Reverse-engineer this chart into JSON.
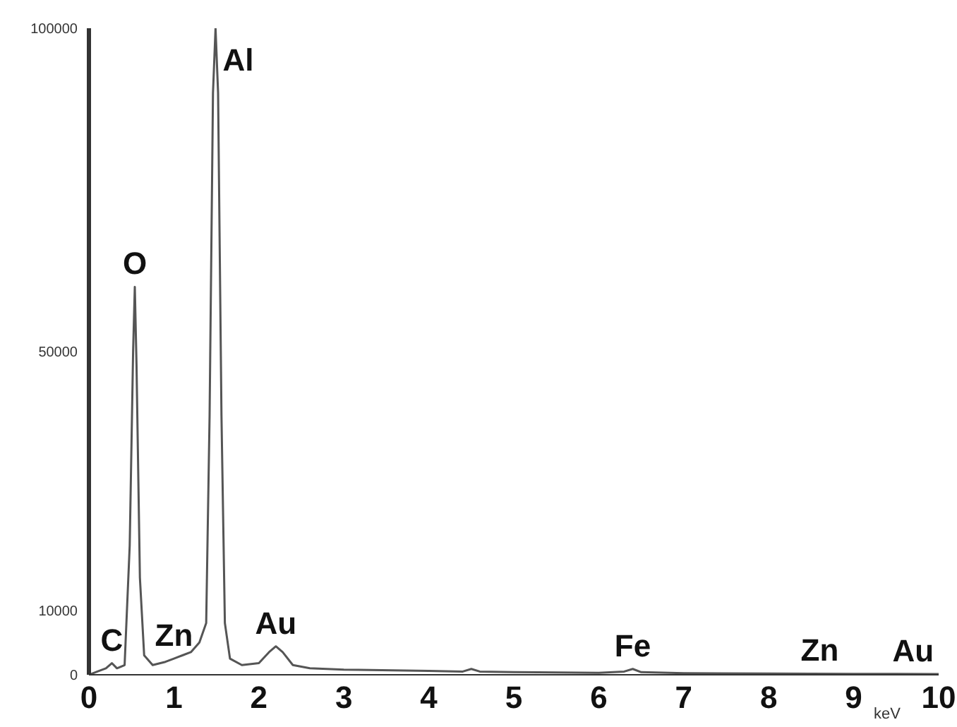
{
  "chart_data": {
    "type": "line",
    "xlabel": "keV",
    "color": "#555555",
    "x": [
      0,
      0.1,
      0.2,
      0.27,
      0.33,
      0.42,
      0.48,
      0.52,
      0.54,
      0.56,
      0.6,
      0.65,
      0.75,
      0.9,
      1.0,
      1.1,
      1.2,
      1.3,
      1.38,
      1.42,
      1.46,
      1.49,
      1.52,
      1.56,
      1.6,
      1.66,
      1.8,
      2.0,
      2.12,
      2.2,
      2.28,
      2.4,
      2.6,
      3.0,
      4.0,
      4.4,
      4.5,
      4.6,
      5.0,
      6.0,
      6.3,
      6.4,
      6.5,
      7.0,
      8.0,
      9.0,
      10.0
    ],
    "values": [
      0,
      500,
      1000,
      1800,
      1000,
      1500,
      20000,
      50000,
      60000,
      48000,
      15000,
      3000,
      1500,
      2000,
      2500,
      3000,
      3500,
      5000,
      8000,
      40000,
      90000,
      100000,
      90000,
      40000,
      8000,
      2500,
      1500,
      1800,
      3500,
      4400,
      3500,
      1500,
      1000,
      800,
      600,
      500,
      900,
      500,
      400,
      300,
      500,
      900,
      400,
      250,
      200,
      150,
      100
    ],
    "xlim": [
      0,
      10
    ],
    "xticks": [
      0,
      1,
      2,
      3,
      4,
      5,
      6,
      7,
      8,
      9,
      10
    ],
    "ylim": [
      0,
      100000
    ],
    "yticks": [
      0,
      10000,
      50000,
      100000
    ],
    "grid": false,
    "marker": "none",
    "line_style": "solid",
    "annotations": [
      {
        "text": "C",
        "x": 0.27,
        "y": 1800
      },
      {
        "text": "O",
        "x": 0.54,
        "y": 60000
      },
      {
        "text": "Zn",
        "x": 1.0,
        "y": 2500
      },
      {
        "text": "Al",
        "x": 1.49,
        "y": 100000
      },
      {
        "text": "Au",
        "x": 2.2,
        "y": 4400
      },
      {
        "text": "Fe",
        "x": 6.4,
        "y": 900
      },
      {
        "text": "Zn",
        "x": 8.6,
        "y": 200
      },
      {
        "text": "Au",
        "x": 9.7,
        "y": 150
      }
    ]
  }
}
